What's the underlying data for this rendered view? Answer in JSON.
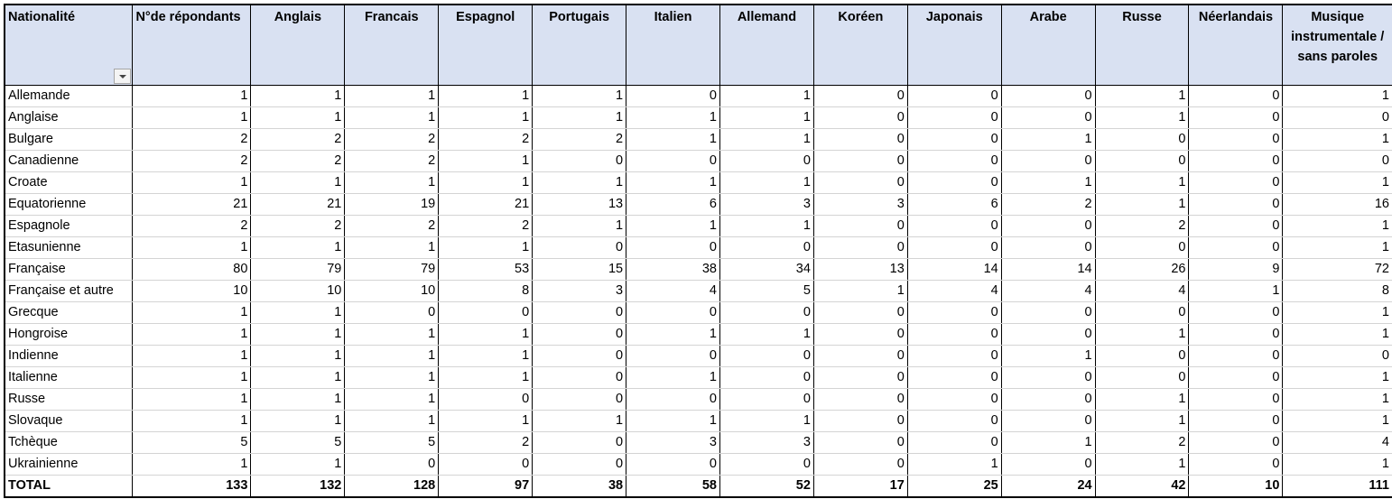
{
  "table": {
    "headers": [
      "Nationalité",
      "N°de répondants",
      "Anglais",
      "Francais",
      "Espagnol",
      "Portugais",
      "Italien",
      "Allemand",
      "Koréen",
      "Japonais",
      "Arabe",
      "Russe",
      "Néerlandais",
      "Musique instrumentale / sans paroles"
    ],
    "rows": [
      {
        "name": "Allemande",
        "values": [
          "1",
          "1",
          "1",
          "1",
          "1",
          "0",
          "1",
          "0",
          "0",
          "0",
          "1",
          "0",
          "1"
        ]
      },
      {
        "name": "Anglaise",
        "values": [
          "1",
          "1",
          "1",
          "1",
          "1",
          "1",
          "1",
          "0",
          "0",
          "0",
          "1",
          "0",
          "0"
        ]
      },
      {
        "name": "Bulgare",
        "values": [
          "2",
          "2",
          "2",
          "2",
          "2",
          "1",
          "1",
          "0",
          "0",
          "1",
          "0",
          "0",
          "1"
        ]
      },
      {
        "name": "Canadienne",
        "values": [
          "2",
          "2",
          "2",
          "1",
          "0",
          "0",
          "0",
          "0",
          "0",
          "0",
          "0",
          "0",
          "0"
        ]
      },
      {
        "name": "Croate",
        "values": [
          "1",
          "1",
          "1",
          "1",
          "1",
          "1",
          "1",
          "0",
          "0",
          "1",
          "1",
          "0",
          "1"
        ]
      },
      {
        "name": "Equatorienne",
        "values": [
          "21",
          "21",
          "19",
          "21",
          "13",
          "6",
          "3",
          "3",
          "6",
          "2",
          "1",
          "0",
          "16"
        ]
      },
      {
        "name": "Espagnole",
        "values": [
          "2",
          "2",
          "2",
          "2",
          "1",
          "1",
          "1",
          "0",
          "0",
          "0",
          "2",
          "0",
          "1"
        ]
      },
      {
        "name": "Etasunienne",
        "values": [
          "1",
          "1",
          "1",
          "1",
          "0",
          "0",
          "0",
          "0",
          "0",
          "0",
          "0",
          "0",
          "1"
        ]
      },
      {
        "name": "Française",
        "values": [
          "80",
          "79",
          "79",
          "53",
          "15",
          "38",
          "34",
          "13",
          "14",
          "14",
          "26",
          "9",
          "72"
        ]
      },
      {
        "name": "Française et autre",
        "values": [
          "10",
          "10",
          "10",
          "8",
          "3",
          "4",
          "5",
          "1",
          "4",
          "4",
          "4",
          "1",
          "8"
        ]
      },
      {
        "name": "Grecque",
        "values": [
          "1",
          "1",
          "0",
          "0",
          "0",
          "0",
          "0",
          "0",
          "0",
          "0",
          "0",
          "0",
          "1"
        ]
      },
      {
        "name": "Hongroise",
        "values": [
          "1",
          "1",
          "1",
          "1",
          "0",
          "1",
          "1",
          "0",
          "0",
          "0",
          "1",
          "0",
          "1"
        ]
      },
      {
        "name": "Indienne",
        "values": [
          "1",
          "1",
          "1",
          "1",
          "0",
          "0",
          "0",
          "0",
          "0",
          "1",
          "0",
          "0",
          "0"
        ]
      },
      {
        "name": "Italienne",
        "values": [
          "1",
          "1",
          "1",
          "1",
          "0",
          "1",
          "0",
          "0",
          "0",
          "0",
          "0",
          "0",
          "1"
        ]
      },
      {
        "name": "Russe",
        "values": [
          "1",
          "1",
          "1",
          "0",
          "0",
          "0",
          "0",
          "0",
          "0",
          "0",
          "1",
          "0",
          "1"
        ]
      },
      {
        "name": "Slovaque",
        "values": [
          "1",
          "1",
          "1",
          "1",
          "1",
          "1",
          "1",
          "0",
          "0",
          "0",
          "1",
          "0",
          "1"
        ]
      },
      {
        "name": "Tchèque",
        "values": [
          "5",
          "5",
          "5",
          "2",
          "0",
          "3",
          "3",
          "0",
          "0",
          "1",
          "2",
          "0",
          "4"
        ]
      },
      {
        "name": "Ukrainienne",
        "values": [
          "1",
          "1",
          "0",
          "0",
          "0",
          "0",
          "0",
          "0",
          "1",
          "0",
          "1",
          "0",
          "1"
        ]
      }
    ],
    "total": {
      "name": "TOTAL",
      "values": [
        "133",
        "132",
        "128",
        "97",
        "38",
        "58",
        "52",
        "17",
        "25",
        "24",
        "42",
        "10",
        "111"
      ]
    }
  },
  "icons": {
    "filter": "filter-dropdown-icon"
  }
}
